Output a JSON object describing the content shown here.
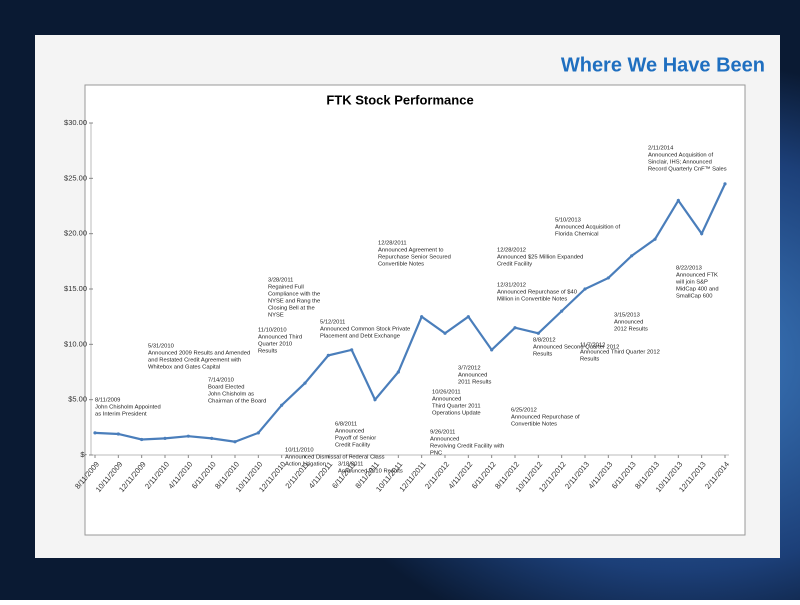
{
  "slide": {
    "title": "Where We Have Been"
  },
  "chart_data": {
    "type": "line",
    "title": "FTK Stock Performance",
    "categories": [
      "8/11/2009",
      "10/11/2009",
      "12/11/2009",
      "2/11/2010",
      "4/11/2010",
      "6/11/2010",
      "8/11/2010",
      "10/11/2010",
      "12/11/2010",
      "2/11/2011",
      "4/11/2011",
      "6/11/2011",
      "8/11/2011",
      "10/11/2011",
      "12/11/2011",
      "2/11/2012",
      "4/11/2012",
      "6/11/2012",
      "8/11/2012",
      "10/11/2012",
      "12/11/2012",
      "2/11/2013",
      "4/11/2013",
      "6/11/2013",
      "8/11/2013",
      "10/11/2013",
      "12/11/2013",
      "2/11/2014"
    ],
    "values": [
      2.0,
      1.9,
      1.4,
      1.5,
      1.7,
      1.5,
      1.2,
      2.0,
      4.5,
      6.5,
      9.0,
      9.5,
      5.0,
      7.5,
      12.5,
      11.0,
      12.5,
      9.5,
      11.5,
      11.0,
      13.0,
      15.0,
      16.0,
      18.0,
      19.5,
      23.0,
      20.0,
      24.5
    ],
    "color": "#4a7ebb",
    "ylim": [
      0,
      30
    ],
    "yticks": [
      {
        "value": 0,
        "label": "$-"
      },
      {
        "value": 5,
        "label": "$5.00"
      },
      {
        "value": 10,
        "label": "$10.00"
      },
      {
        "value": 15,
        "label": "$15.00"
      },
      {
        "value": 20,
        "label": "$20.00"
      },
      {
        "value": 25,
        "label": "$25.00"
      },
      {
        "value": 30,
        "label": "$30.00"
      }
    ],
    "grid": false,
    "annotations": [
      [
        "8/11/2009",
        "John Chisholm Appointed",
        "as Interim President"
      ],
      [
        "5/31/2010",
        "Announced 2009 Results and Amended",
        "and Restated Credit Agreement with",
        "Whitebox and Gates Capital"
      ],
      [
        "7/14/2010",
        "Board Elected",
        "John Chisholm as",
        "Chairman of the Board"
      ],
      [
        "10/11/2010",
        "Announced Dismissal of Federal Class",
        "Action Litigation"
      ],
      [
        "11/10/2010",
        "Announced Third",
        "Quarter 2010",
        "Results"
      ],
      [
        "3/28/2011",
        "Regained Full",
        "Compliance with the",
        "NYSE and Rang the",
        "Closing Bell at the",
        "NYSE"
      ],
      [
        "5/12/2011",
        "Announced Common Stock Private",
        "Placement and Debt Exchange"
      ],
      [
        "6/8/2011",
        "Announced",
        "Payoff of Senior",
        "Credit Facility"
      ],
      [
        "3/18/2011",
        "Announced 2010 Results"
      ],
      [
        "12/28/2011",
        "Announced Agreement to",
        "Repurchase Senior Secured",
        "Convertible Notes"
      ],
      [
        "9/26/2011",
        "Announced",
        "Revolving Credit Facility with",
        "PNC"
      ],
      [
        "10/26/2011",
        "Announced",
        "Third Quarter 2011",
        "Operations Update"
      ],
      [
        "3/7/2012",
        "Announced",
        "2011 Results"
      ],
      [
        "6/25/2012",
        "Announced Repurchase of",
        "Convertible Notes"
      ],
      [
        "12/28/2012",
        "Announced $25 Million Expanded",
        "Credit Facility"
      ],
      [
        "12/31/2012",
        "Announced Repurchase of $40",
        "Million in Convertible Notes"
      ],
      [
        "8/8/2012",
        "Announced Second Quarter 2012",
        "Results"
      ],
      [
        "5/10/2013",
        "Announced Acquisition of",
        "Florida Chemical"
      ],
      [
        "11/7/2012",
        "Announced Third Quarter 2012",
        "Results"
      ],
      [
        "3/15/2013",
        "Announced",
        "2012 Results"
      ],
      [
        "8/22/2013",
        "Announced FTK",
        "will join S&P",
        "MidCap 400 and",
        "SmallCap 600"
      ],
      [
        "2/11/2014",
        "Announced Acquisition of",
        "Sinclair, IHS; Announced",
        "Record Quarterly CnF™ Sales"
      ]
    ]
  }
}
